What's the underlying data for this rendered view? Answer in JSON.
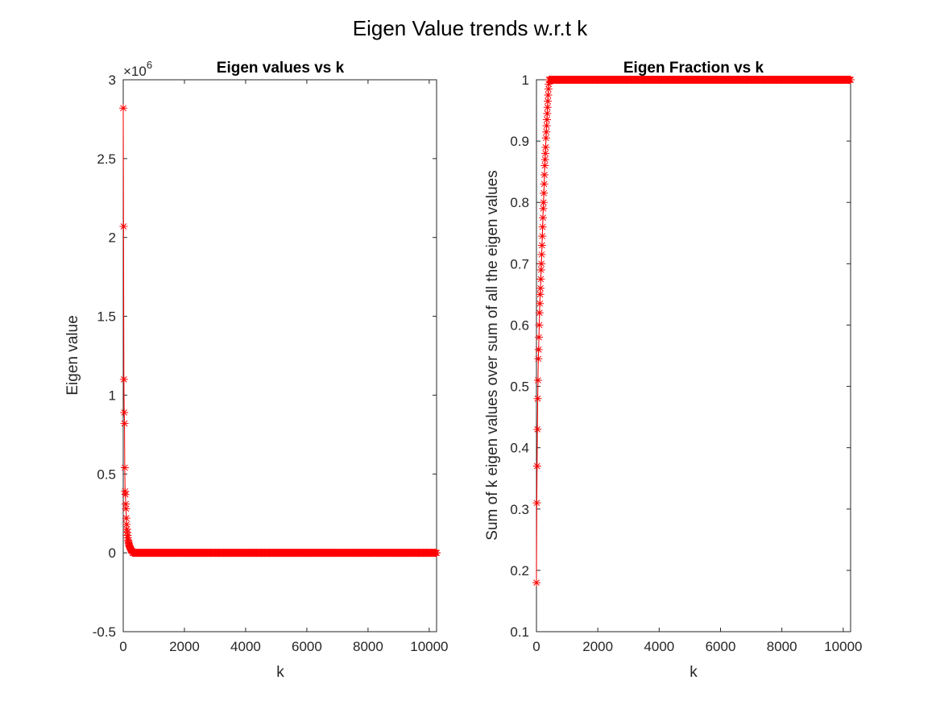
{
  "figure": {
    "title": "Eigen Value trends w.r.t k"
  },
  "chart_data": [
    {
      "type": "line",
      "title": "Eigen values vs k",
      "xlabel": "k",
      "ylabel": "Eigen value",
      "xlim": [
        0,
        10240
      ],
      "ylim": [
        -0.5,
        3
      ],
      "y_exponent_label": "×10",
      "y_exponent": "6",
      "y_scale_note": "values in units of 10^6",
      "xticks": [
        0,
        2000,
        4000,
        6000,
        8000,
        10000
      ],
      "xtick_labels": [
        "0",
        "2000",
        "4000",
        "6000",
        "8000",
        "10000"
      ],
      "yticks": [
        -0.5,
        0,
        0.5,
        1,
        1.5,
        2,
        2.5,
        3
      ],
      "ytick_labels": [
        "-0.5",
        "0",
        "0.5",
        "1",
        "1.5",
        "2",
        "2.5",
        "3"
      ],
      "grid": false,
      "legend": "none",
      "marker": "asterisk",
      "color": "#ff0000",
      "series": [
        {
          "x_start": 1,
          "x_end": 10240,
          "leading_values": [
            2.82,
            2.07,
            1.1,
            0.89,
            0.82,
            0.54,
            0.39,
            0.37,
            0.31,
            0.28,
            0.22,
            0.18,
            0.15,
            0.13,
            0.11,
            0.095,
            0.08,
            0.07,
            0.06,
            0.05,
            0.045,
            0.04,
            0.035,
            0.03,
            0.025,
            0.02,
            0.017,
            0.014,
            0.012,
            0.01
          ],
          "tail_value": 0
        }
      ]
    },
    {
      "type": "line",
      "title": "Eigen Fraction vs k",
      "xlabel": "k",
      "ylabel": "Sum of k eigen values over sum of all the eigen values",
      "xlim": [
        0,
        10240
      ],
      "ylim": [
        0.1,
        1
      ],
      "xticks": [
        0,
        2000,
        4000,
        6000,
        8000,
        10000
      ],
      "xtick_labels": [
        "0",
        "2000",
        "4000",
        "6000",
        "8000",
        "10000"
      ],
      "yticks": [
        0.1,
        0.2,
        0.3,
        0.4,
        0.5,
        0.6,
        0.7,
        0.8,
        0.9,
        1
      ],
      "ytick_labels": [
        "0.1",
        "0.2",
        "0.3",
        "0.4",
        "0.5",
        "0.6",
        "0.7",
        "0.8",
        "0.9",
        "1"
      ],
      "grid": false,
      "legend": "none",
      "marker": "asterisk",
      "color": "#ff0000",
      "series": [
        {
          "x_start": 1,
          "x_end": 10240,
          "leading_values": [
            0.18,
            0.31,
            0.37,
            0.43,
            0.48,
            0.51,
            0.545,
            0.56,
            0.58,
            0.6,
            0.62,
            0.635,
            0.65,
            0.66,
            0.675,
            0.69,
            0.7,
            0.715,
            0.73,
            0.745,
            0.76,
            0.775,
            0.79,
            0.8,
            0.815,
            0.83,
            0.845,
            0.86,
            0.87,
            0.88,
            0.89,
            0.905,
            0.915,
            0.925,
            0.935,
            0.945,
            0.955,
            0.965,
            0.975,
            0.985,
            0.993,
            1.0
          ],
          "tail_value": 1.0
        }
      ]
    }
  ]
}
